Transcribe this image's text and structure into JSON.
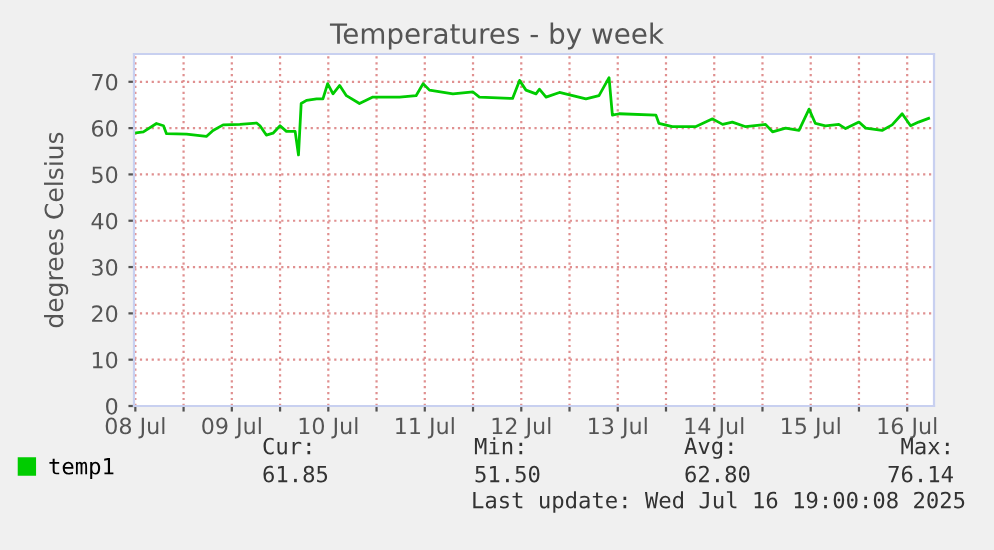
{
  "chart_data": {
    "type": "line",
    "title": "Temperatures - by week",
    "ylabel": "degrees Celsius",
    "x": [
      "2025-07-08T11:40",
      "2025-07-08T14:00",
      "2025-07-08T17:15",
      "2025-07-08T19:00",
      "2025-07-08T19:45",
      "2025-07-09T00:45",
      "2025-07-09T05:40",
      "2025-07-09T07:20",
      "2025-07-09T09:50",
      "2025-07-09T14:00",
      "2025-07-09T18:10",
      "2025-07-09T19:00",
      "2025-07-09T20:35",
      "2025-07-09T22:15",
      "2025-07-10T00:00",
      "2025-07-10T01:35",
      "2025-07-10T03:45",
      "2025-07-10T04:35",
      "2025-07-10T05:15",
      "2025-07-10T06:35",
      "2025-07-10T09:05",
      "2025-07-10T10:40",
      "2025-07-10T11:50",
      "2025-07-10T13:10",
      "2025-07-10T14:50",
      "2025-07-10T16:30",
      "2025-07-10T19:45",
      "2025-07-10T23:05",
      "2025-07-11T05:45",
      "2025-07-11T09:50",
      "2025-07-11T11:35",
      "2025-07-11T13:10",
      "2025-07-11T19:00",
      "2025-07-12T00:00",
      "2025-07-12T01:35",
      "2025-07-12T09:50",
      "2025-07-12T11:35",
      "2025-07-12T13:10",
      "2025-07-12T15:40",
      "2025-07-12T16:30",
      "2025-07-12T18:10",
      "2025-07-12T21:30",
      "2025-07-13T04:05",
      "2025-07-13T07:20",
      "2025-07-13T09:50",
      "2025-07-13T10:40",
      "2025-07-13T12:20",
      "2025-07-13T21:30",
      "2025-07-13T22:15",
      "2025-07-14T01:35",
      "2025-07-14T07:20",
      "2025-07-14T11:35",
      "2025-07-14T14:05",
      "2025-07-14T16:30",
      "2025-07-14T19:50",
      "2025-07-15T00:45",
      "2025-07-15T02:30",
      "2025-07-15T05:45",
      "2025-07-15T09:05",
      "2025-07-15T11:35",
      "2025-07-15T13:10",
      "2025-07-15T15:40",
      "2025-07-15T19:00",
      "2025-07-15T20:40",
      "2025-07-16T00:00",
      "2025-07-16T01:40",
      "2025-07-16T05:45",
      "2025-07-16T08:15",
      "2025-07-16T10:45",
      "2025-07-16T12:50",
      "2025-07-16T14:50",
      "2025-07-16T17:20"
    ],
    "series": [
      {
        "name": "temp1",
        "color": "#00cc00",
        "values": [
          58.9,
          59.2,
          61.0,
          60.5,
          58.8,
          58.7,
          58.2,
          59.5,
          60.7,
          60.8,
          61.1,
          60.5,
          58.5,
          58.9,
          60.5,
          59.3,
          59.3,
          54.2,
          65.3,
          66.0,
          66.3,
          66.3,
          69.6,
          67.4,
          69.2,
          67.0,
          65.3,
          66.7,
          66.7,
          67.0,
          69.6,
          68.2,
          67.4,
          67.8,
          66.7,
          66.4,
          70.3,
          68.2,
          67.4,
          68.4,
          66.7,
          67.7,
          66.3,
          67.0,
          70.9,
          62.8,
          63.1,
          62.8,
          61.0,
          60.3,
          60.3,
          62.0,
          60.8,
          61.3,
          60.3,
          60.8,
          59.2,
          60.0,
          59.5,
          64.1,
          61.0,
          60.5,
          60.8,
          59.9,
          61.3,
          60.0,
          59.5,
          60.7,
          63.1,
          60.5,
          61.3,
          62.1
        ]
      }
    ],
    "xlim": [
      "2025-07-08T11:40",
      "2025-07-16T18:40"
    ],
    "xticks": [
      {
        "value": "2025-07-08T12:00",
        "label": "08 Jul"
      },
      {
        "value": "2025-07-09T00:00",
        "label": null
      },
      {
        "value": "2025-07-09T12:00",
        "label": "09 Jul"
      },
      {
        "value": "2025-07-10T00:00",
        "label": null
      },
      {
        "value": "2025-07-10T12:00",
        "label": "10 Jul"
      },
      {
        "value": "2025-07-11T00:00",
        "label": null
      },
      {
        "value": "2025-07-11T12:00",
        "label": "11 Jul"
      },
      {
        "value": "2025-07-12T00:00",
        "label": null
      },
      {
        "value": "2025-07-12T12:00",
        "label": "12 Jul"
      },
      {
        "value": "2025-07-13T00:00",
        "label": null
      },
      {
        "value": "2025-07-13T12:00",
        "label": "13 Jul"
      },
      {
        "value": "2025-07-14T00:00",
        "label": null
      },
      {
        "value": "2025-07-14T12:00",
        "label": "14 Jul"
      },
      {
        "value": "2025-07-15T00:00",
        "label": null
      },
      {
        "value": "2025-07-15T12:00",
        "label": "15 Jul"
      },
      {
        "value": "2025-07-16T00:00",
        "label": null
      },
      {
        "value": "2025-07-16T12:00",
        "label": "16 Jul"
      }
    ],
    "ylim": [
      0,
      76
    ],
    "yticks": [
      0,
      10,
      20,
      30,
      40,
      50,
      60,
      70
    ],
    "grid": true,
    "legend": "bottom",
    "line_style": "solid",
    "annotations": [
      "Cur:",
      "Min:",
      "Avg:",
      "Max:",
      "61.85",
      "51.50",
      "62.80",
      "76.14",
      "Last update: Wed Jul 16 19:00:08 2025"
    ]
  }
}
